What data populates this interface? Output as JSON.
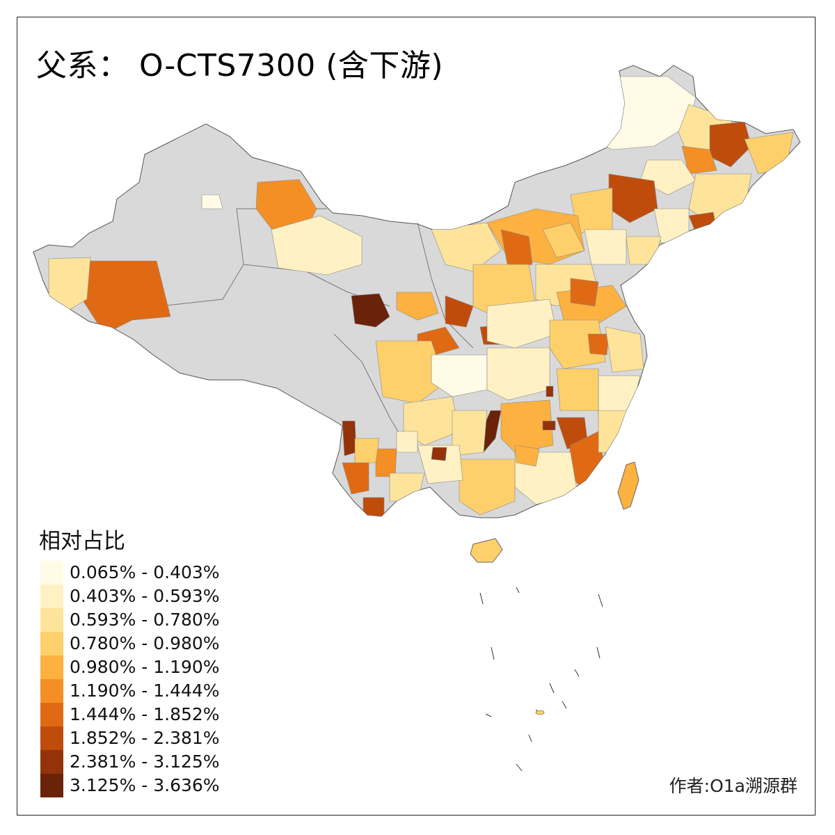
{
  "title": "父系： O-CTS7300 (含下游)",
  "legend": {
    "title": "相对占比",
    "classes": [
      {
        "label": "0.065% - 0.403%",
        "color": "#fffbe6"
      },
      {
        "label": "0.403% - 0.593%",
        "color": "#fff1c4"
      },
      {
        "label": "0.593% - 0.780%",
        "color": "#fee49a"
      },
      {
        "label": "0.780% - 0.980%",
        "color": "#fed06b"
      },
      {
        "label": "0.980% - 1.190%",
        "color": "#fdb140"
      },
      {
        "label": "1.190% - 1.444%",
        "color": "#f48f25"
      },
      {
        "label": "1.444% - 1.852%",
        "color": "#e06a14"
      },
      {
        "label": "1.852% - 2.381%",
        "color": "#c04c0c"
      },
      {
        "label": "2.381% - 3.125%",
        "color": "#94320a"
      },
      {
        "label": "3.125% - 3.636%",
        "color": "#6a2308"
      }
    ]
  },
  "no_data_color": "#d9d9d9",
  "credit": "作者:O1a溯源群"
}
